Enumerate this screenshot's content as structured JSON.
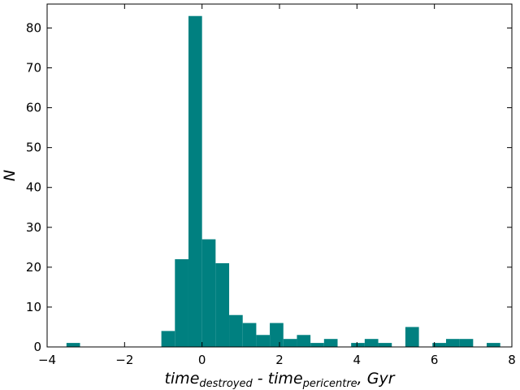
{
  "chart_data": {
    "type": "histogram",
    "xlabel": {
      "part1": "time",
      "sub1": "destroyed",
      "part2": " - time",
      "sub2": "pericentre",
      "part3": ", Gyr"
    },
    "ylabel": "N",
    "bins": [
      -3.5,
      -3.15,
      -2.8,
      -2.45,
      -2.1,
      -1.75,
      -1.4,
      -1.05,
      -0.7,
      -0.35,
      0,
      0.35,
      0.7,
      1.05,
      1.4,
      1.75,
      2.1,
      2.45,
      2.8,
      3.15,
      3.5,
      3.85,
      4.2,
      4.55,
      4.9,
      5.25,
      5.6,
      5.95,
      6.3,
      6.65,
      7.0,
      7.35,
      7.7
    ],
    "values": [
      1,
      0,
      0,
      0,
      0,
      0,
      0,
      4,
      22,
      83,
      27,
      21,
      8,
      6,
      3,
      6,
      2,
      3,
      1,
      2,
      0,
      1,
      2,
      1,
      0,
      5,
      0,
      1,
      2,
      2,
      0,
      1
    ],
    "color": "#008080",
    "xlim": [
      -4,
      8
    ],
    "ylim": [
      0,
      86
    ],
    "xticks": [
      {
        "value": -4,
        "label": "−4"
      },
      {
        "value": -2,
        "label": "−2"
      },
      0,
      2,
      4,
      6,
      8
    ],
    "yticks": [
      0,
      10,
      20,
      30,
      40,
      50,
      60,
      70,
      80
    ]
  }
}
